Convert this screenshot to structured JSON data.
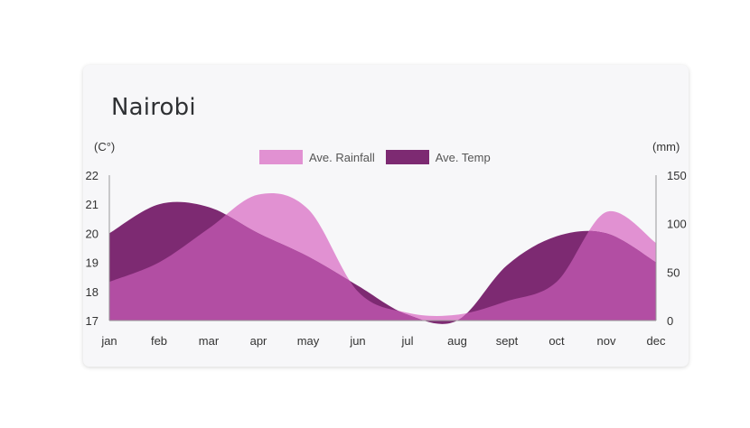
{
  "chart_data": {
    "type": "area",
    "title": "Nairobi",
    "categories": [
      "jan",
      "feb",
      "mar",
      "apr",
      "may",
      "jun",
      "jul",
      "aug",
      "sept",
      "oct",
      "nov",
      "dec"
    ],
    "y_left": {
      "unit_label": "(C°)",
      "ylim": [
        17,
        22
      ],
      "ticks": [
        "17",
        "18",
        "19",
        "20",
        "21",
        "22"
      ]
    },
    "y_right": {
      "unit_label": "(mm)",
      "ylim": [
        0,
        150
      ],
      "ticks": [
        "0",
        "50",
        "100",
        "150"
      ]
    },
    "series": [
      {
        "name": "Ave. Rainfall",
        "axis": "right",
        "color": "#e191d2",
        "values": [
          40,
          60,
          95,
          130,
          115,
          30,
          8,
          6,
          20,
          40,
          112,
          80
        ]
      },
      {
        "name": "Ave. Temp",
        "axis": "left",
        "color": "#7d2a72",
        "values": [
          20,
          21,
          20.9,
          20,
          19.2,
          18.2,
          17.2,
          17,
          18.9,
          19.9,
          20,
          19
        ]
      }
    ],
    "overlap_color": "#b24ea3",
    "legend_position": "top-center",
    "grid": false
  }
}
